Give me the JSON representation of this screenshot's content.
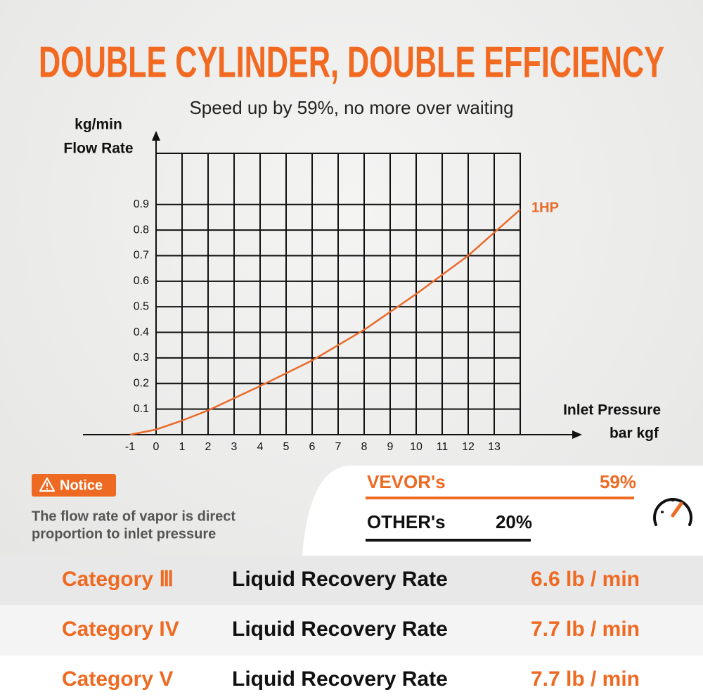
{
  "title": "DOUBLE CYLINDER, DOUBLE EFFICIENCY",
  "subtitle": "Speed up by 59%, no more over waiting",
  "chart_data": {
    "type": "line",
    "y_unit": "kg/min",
    "y_label": "Flow Rate",
    "x_label": "Inlet Pressure",
    "x_unit": "bar kgf",
    "x": [
      -1,
      0,
      1,
      2,
      4,
      6,
      8,
      10,
      12,
      13,
      14
    ],
    "series": [
      {
        "name": "1HP",
        "color": "#ea6a2a",
        "values": [
          0,
          0.02,
          0.055,
          0.095,
          0.19,
          0.29,
          0.41,
          0.55,
          0.7,
          0.79,
          0.88
        ]
      }
    ],
    "xlim": [
      -1,
      14
    ],
    "ylim": [
      0,
      1.1
    ],
    "xticks": [
      -1,
      0,
      1,
      2,
      3,
      4,
      5,
      6,
      7,
      8,
      9,
      10,
      11,
      12,
      13
    ],
    "yticks": [
      0.1,
      0.2,
      0.3,
      0.4,
      0.5,
      0.6,
      0.7,
      0.8,
      0.9
    ],
    "grid": true
  },
  "notice": {
    "label": "Notice",
    "text": [
      "The flow rate of vapor is direct",
      "proportion to inlet pressure"
    ]
  },
  "comparison": [
    {
      "name": "VEVOR's",
      "value": "59%"
    },
    {
      "name": "OTHER's",
      "value": "20%"
    }
  ],
  "table": {
    "rows": [
      [
        "Category Ⅲ",
        "Liquid Recovery Rate",
        "6.6 lb / min"
      ],
      [
        "Category IV",
        "Liquid Recovery Rate",
        "7.7 lb / min"
      ],
      [
        "Category V",
        "Liquid Recovery Rate",
        "7.7 lb / min"
      ]
    ]
  }
}
